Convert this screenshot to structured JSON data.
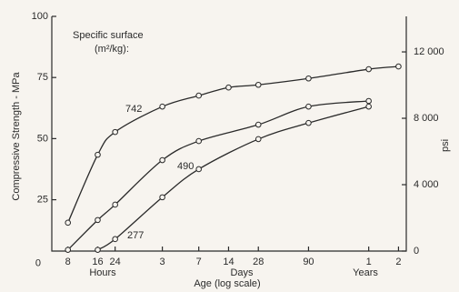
{
  "chart_data": {
    "type": "line",
    "y_label": "Compressive Strength - MPa",
    "y2_label": "psi",
    "x_label": "Age (log scale)",
    "annotations": [
      "Specific surface",
      "(m²/kg):"
    ],
    "x_groups": [
      "Hours",
      "Days",
      "Years"
    ],
    "x_log": true,
    "xlim": [
      5.5,
      21000
    ],
    "xticks": [
      8,
      16,
      24,
      {
        "value": 72,
        "label": "3"
      },
      {
        "value": 168,
        "label": "7"
      },
      {
        "value": 336,
        "label": "14"
      },
      {
        "value": 672,
        "label": "28"
      },
      {
        "value": 2160,
        "label": "90"
      },
      {
        "value": 8760,
        "label": "1"
      },
      {
        "value": 17520,
        "label": "2"
      }
    ],
    "ylim": [
      4,
      100
    ],
    "yticks": [
      0,
      25,
      50,
      75,
      100
    ],
    "y2lim": [
      0,
      14140
    ],
    "y2ticks": [
      0,
      {
        "value": 4000,
        "label": "4 000"
      },
      {
        "value": 8000,
        "label": "8 000"
      },
      {
        "value": 12000,
        "label": "12 000"
      }
    ],
    "series": [
      {
        "name": "742",
        "color": "#2a2a2a",
        "x": [
          8,
          16,
          24,
          72,
          168,
          336,
          672,
          2160,
          8760,
          17520
        ],
        "values": [
          15.6,
          43.4,
          52.7,
          63.1,
          67.6,
          70.9,
          72.0,
          74.6,
          78.4,
          79.5
        ]
      },
      {
        "name": "490",
        "color": "#2a2a2a",
        "x": [
          8,
          16,
          24,
          72,
          168,
          672,
          2160,
          8760
        ],
        "values": [
          4.5,
          16.7,
          23.0,
          41.2,
          49.0,
          55.7,
          63.1,
          65.4
        ]
      },
      {
        "name": "277",
        "color": "#2a2a2a",
        "x": [
          16,
          24,
          72,
          168,
          672,
          2160,
          8760
        ],
        "values": [
          4.5,
          8.9,
          26.0,
          37.5,
          49.8,
          56.4,
          63.1
        ]
      }
    ]
  }
}
